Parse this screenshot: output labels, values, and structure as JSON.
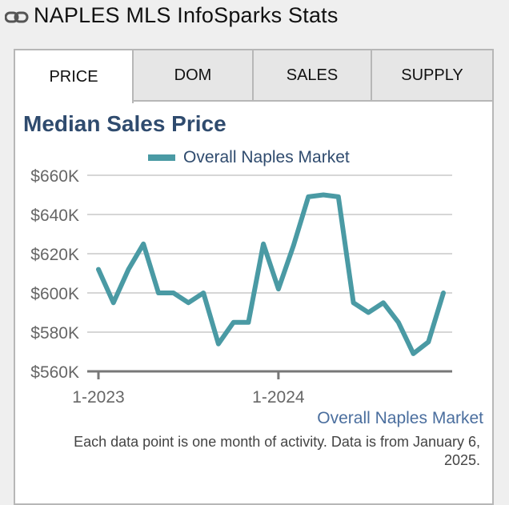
{
  "header": {
    "title": "NAPLES MLS InfoSparks Stats",
    "icon": "link-icon"
  },
  "tabs": [
    {
      "label": "PRICE",
      "active": true
    },
    {
      "label": "DOM",
      "active": false
    },
    {
      "label": "SALES",
      "active": false
    },
    {
      "label": "SUPPLY",
      "active": false
    }
  ],
  "chart_data": {
    "type": "line",
    "title": "Median Sales Price",
    "x": [
      "2023-01",
      "2023-02",
      "2023-03",
      "2023-04",
      "2023-05",
      "2023-06",
      "2023-07",
      "2023-08",
      "2023-09",
      "2023-10",
      "2023-11",
      "2023-12",
      "2024-01",
      "2024-02",
      "2024-03",
      "2024-04",
      "2024-05",
      "2024-06",
      "2024-07",
      "2024-08",
      "2024-09",
      "2024-10",
      "2024-11",
      "2024-12"
    ],
    "series": [
      {
        "name": "Overall Naples Market",
        "color": "#4a9aa4",
        "values": [
          612000,
          595000,
          612000,
          625000,
          600000,
          600000,
          595000,
          600000,
          574000,
          585000,
          585000,
          625000,
          602000,
          624000,
          649000,
          650000,
          649000,
          595000,
          590000,
          595000,
          585000,
          569000,
          575000,
          600000
        ]
      }
    ],
    "y_ticks": [
      "$560K",
      "$580K",
      "$600K",
      "$620K",
      "$640K",
      "$660K"
    ],
    "x_ticks": [
      "1-2023",
      "1-2024"
    ],
    "ylim": [
      560000,
      660000
    ],
    "grid": true,
    "legend_position": "top"
  },
  "footer": {
    "source_link": "Overall Naples Market",
    "note": "Each data point is one month of activity. Data is from January 6, 2025."
  }
}
